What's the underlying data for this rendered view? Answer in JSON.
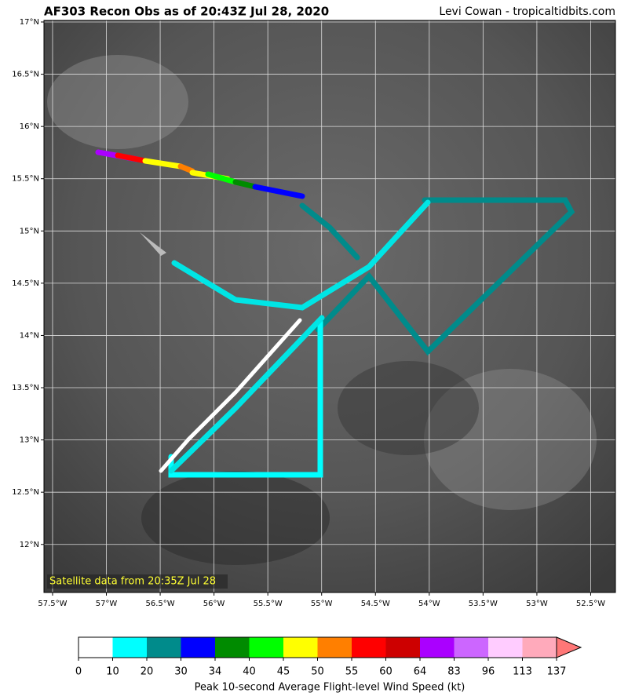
{
  "header": {
    "title": "AF303 Recon Obs as of 20:43Z Jul 28, 2020",
    "credit": "Levi Cowan - tropicaltidbits.com"
  },
  "map": {
    "caption": "Satellite data from 20:35Z Jul 28",
    "xlim": [
      -57.58,
      -52.27
    ],
    "ylim": [
      11.54,
      17.015
    ],
    "xticks": [
      {
        "value": -57.5,
        "label": "57.5°W"
      },
      {
        "value": -57,
        "label": "57°W"
      },
      {
        "value": -56.5,
        "label": "56.5°W"
      },
      {
        "value": -56,
        "label": "56°W"
      },
      {
        "value": -55.5,
        "label": "55.5°W"
      },
      {
        "value": -55,
        "label": "55°W"
      },
      {
        "value": -54.5,
        "label": "54.5°W"
      },
      {
        "value": -54,
        "label": "54°W"
      },
      {
        "value": -53.5,
        "label": "53.5°W"
      },
      {
        "value": -53,
        "label": "53°W"
      },
      {
        "value": -52.5,
        "label": "52.5°W"
      }
    ],
    "yticks": [
      {
        "value": 12,
        "label": "12°N"
      },
      {
        "value": 12.5,
        "label": "12.5°N"
      },
      {
        "value": 13,
        "label": "13°N"
      },
      {
        "value": 13.5,
        "label": "13.5°N"
      },
      {
        "value": 14,
        "label": "14°N"
      },
      {
        "value": 14.5,
        "label": "14.5°N"
      },
      {
        "value": 15,
        "label": "15°N"
      },
      {
        "value": 15.5,
        "label": "15.5°N"
      },
      {
        "value": 16,
        "label": "16°N"
      },
      {
        "value": 16.5,
        "label": "16.5°N"
      },
      {
        "value": 17,
        "label": "17°N"
      }
    ],
    "grid": true
  },
  "colorbar": {
    "label": "Peak 10-second Average Flight-level Wind Speed (kt)",
    "bounds": [
      0,
      10,
      20,
      30,
      34,
      40,
      45,
      50,
      55,
      60,
      64,
      83,
      96,
      113,
      137
    ],
    "colors": [
      "#ffffff",
      "#00ffff",
      "#008b8b",
      "#0000ff",
      "#008b00",
      "#00ff00",
      "#ffff00",
      "#ff7f00",
      "#ff0000",
      "#cd0000",
      "#aa00ff",
      "#cc66ff",
      "#ffccff",
      "#ffaabb"
    ],
    "extend_color": "#ff7777"
  }
}
